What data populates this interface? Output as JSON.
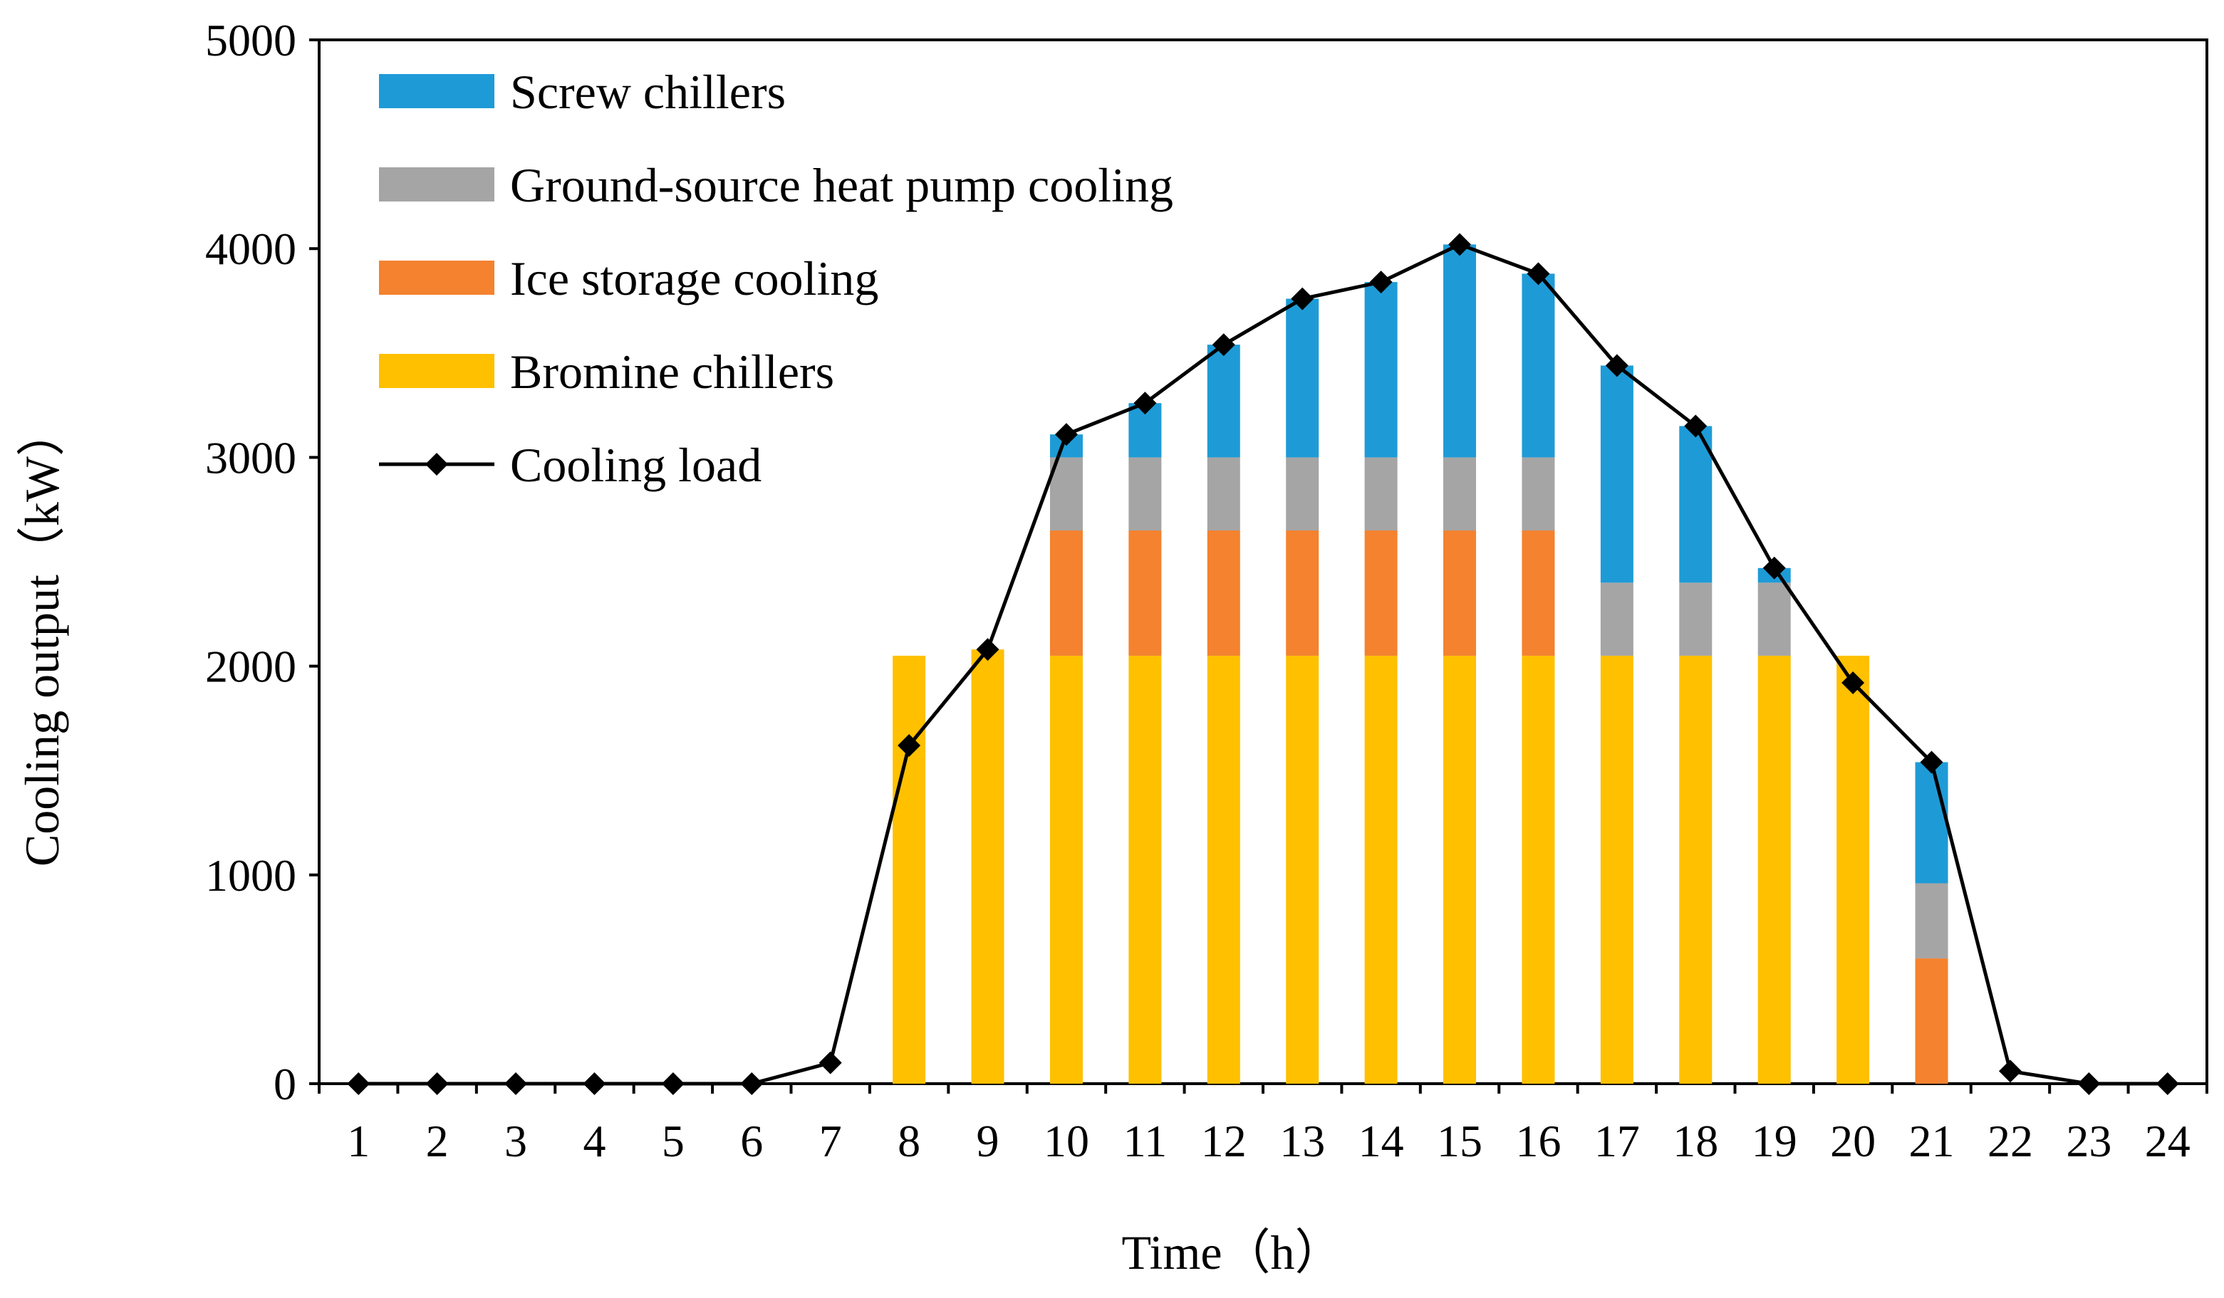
{
  "chart_data": {
    "type": "bar",
    "stacked": true,
    "title": "",
    "xlabel": "Time（h）",
    "ylabel": "Cooling output（kW）",
    "ylim": [
      0,
      5000
    ],
    "yticks": [
      0,
      1000,
      2000,
      3000,
      4000,
      5000
    ],
    "grid": false,
    "legend_position": "top-left",
    "categories": [
      "1",
      "2",
      "3",
      "4",
      "5",
      "6",
      "7",
      "8",
      "9",
      "10",
      "11",
      "12",
      "13",
      "14",
      "15",
      "16",
      "17",
      "18",
      "19",
      "20",
      "21",
      "22",
      "23",
      "24"
    ],
    "series": [
      {
        "name": "Bromine chillers",
        "color": "#FFC000",
        "values": [
          0,
          0,
          0,
          0,
          0,
          0,
          0,
          2050,
          2080,
          2050,
          2050,
          2050,
          2050,
          2050,
          2050,
          2050,
          2050,
          2050,
          2050,
          2050,
          0,
          0,
          0,
          0
        ]
      },
      {
        "name": "Ice storage cooling",
        "color": "#F4822F",
        "values": [
          0,
          0,
          0,
          0,
          0,
          0,
          0,
          0,
          0,
          600,
          600,
          600,
          600,
          600,
          600,
          600,
          0,
          0,
          0,
          0,
          600,
          0,
          0,
          0
        ]
      },
      {
        "name": "Ground-source heat pump cooling",
        "color": "#A5A5A5",
        "values": [
          0,
          0,
          0,
          0,
          0,
          0,
          0,
          0,
          0,
          350,
          350,
          350,
          350,
          350,
          350,
          350,
          350,
          350,
          350,
          0,
          360,
          0,
          0,
          0
        ]
      },
      {
        "name": "Screw chillers",
        "color": "#1E9BD7",
        "values": [
          0,
          0,
          0,
          0,
          0,
          0,
          0,
          0,
          0,
          110,
          260,
          540,
          760,
          840,
          1020,
          880,
          1040,
          750,
          70,
          0,
          580,
          0,
          0,
          0
        ]
      }
    ],
    "line_series": {
      "name": "Cooling load",
      "color": "#000000",
      "values": [
        0,
        0,
        0,
        0,
        0,
        0,
        100,
        1620,
        2080,
        3110,
        3260,
        3540,
        3760,
        3840,
        4020,
        3880,
        3440,
        3150,
        2470,
        1920,
        1540,
        60,
        0,
        0
      ]
    },
    "legend_order": [
      "Screw chillers",
      "Ground-source heat pump cooling",
      "Ice storage cooling",
      "Bromine chillers",
      "Cooling load"
    ]
  }
}
